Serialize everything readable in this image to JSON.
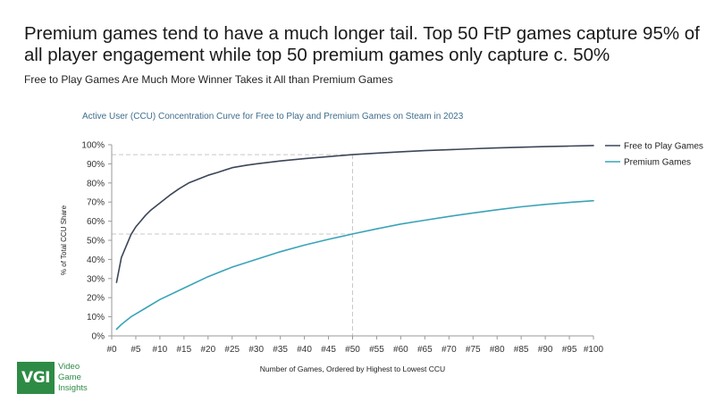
{
  "headline": "Premium games tend to have a much longer tail. Top 50 FtP games capture 95% of all player engagement while top 50 premium games only capture c. 50%",
  "subtitle": "Free to Play Games Are Much More Winner Takes it All than Premium Games",
  "logo": {
    "mark": "VGI",
    "lines": [
      "Video",
      "Game",
      "Insights"
    ],
    "color": "#2e8b45"
  },
  "chart_data": {
    "type": "line",
    "title": "Active User (CCU) Concentration Curve for Free to Play and Premium Games on Steam in 2023",
    "xlabel": "Number of Games, Ordered by Highest to Lowest CCU",
    "ylabel": "% of Total CCU Share",
    "xlim": [
      0,
      100
    ],
    "ylim": [
      0,
      100
    ],
    "x_ticks": [
      "#0",
      "#5",
      "#10",
      "#15",
      "#20",
      "#25",
      "#30",
      "#35",
      "#40",
      "#45",
      "#50",
      "#55",
      "#60",
      "#65",
      "#70",
      "#75",
      "#80",
      "#85",
      "#90",
      "#95",
      "#100"
    ],
    "y_ticks": [
      "0%",
      "10%",
      "20%",
      "30%",
      "40%",
      "50%",
      "60%",
      "70%",
      "80%",
      "90%",
      "100%"
    ],
    "legend_position": "top-right",
    "series": [
      {
        "name": "Free to Play Games",
        "color": "#3b4658",
        "x": [
          1,
          2,
          3,
          4,
          5,
          6,
          7,
          8,
          9,
          10,
          12,
          14,
          16,
          18,
          20,
          22,
          25,
          28,
          30,
          35,
          40,
          45,
          50,
          55,
          60,
          65,
          70,
          75,
          80,
          85,
          90,
          95,
          100
        ],
        "y": [
          28,
          41,
          47,
          53,
          57,
          60,
          63,
          65.5,
          67.5,
          69.5,
          73.5,
          77,
          80,
          82,
          84,
          85.5,
          88,
          89.3,
          90,
          91.5,
          92.7,
          93.8,
          94.8,
          95.6,
          96.3,
          96.9,
          97.4,
          97.9,
          98.3,
          98.7,
          99,
          99.3,
          99.6
        ]
      },
      {
        "name": "Premium Games",
        "color": "#3aa3b8",
        "x": [
          1,
          2,
          3,
          4,
          5,
          7,
          10,
          15,
          20,
          25,
          30,
          35,
          40,
          45,
          50,
          55,
          60,
          65,
          70,
          75,
          80,
          85,
          90,
          95,
          100
        ],
        "y": [
          3.5,
          6,
          8,
          10,
          11.5,
          14.5,
          19,
          25,
          31,
          36,
          40,
          44,
          47.5,
          50.5,
          53.3,
          56,
          58.5,
          60.5,
          62.5,
          64.3,
          66,
          67.5,
          68.8,
          69.8,
          70.7
        ]
      }
    ],
    "annotations": [
      {
        "type": "reference",
        "x": 50,
        "y": 94.8
      },
      {
        "type": "reference",
        "x": 50,
        "y": 53.3
      }
    ]
  }
}
